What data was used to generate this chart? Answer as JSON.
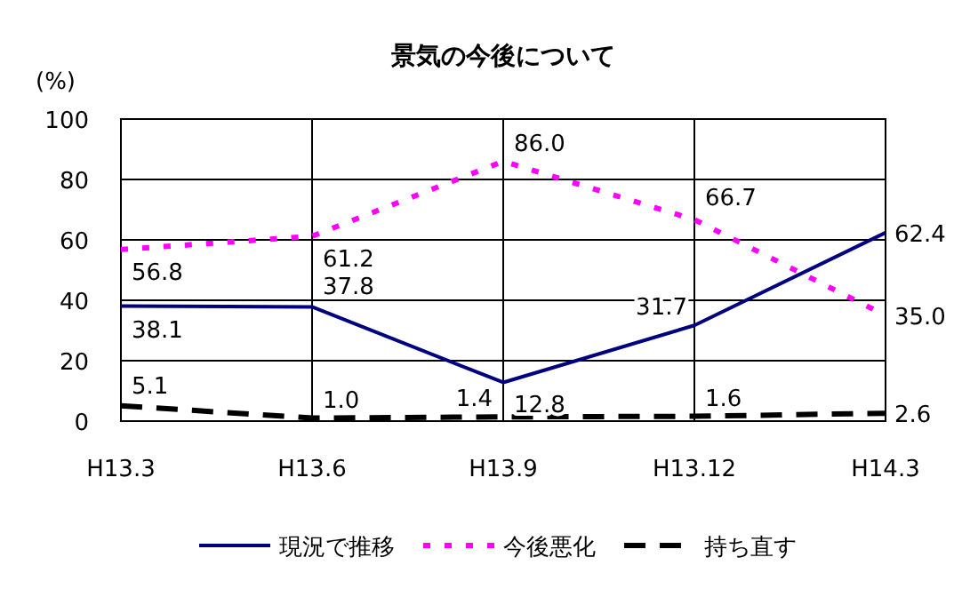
{
  "chart_data": {
    "type": "line",
    "title": "景気の今後について",
    "ylabel": "(%)",
    "categories": [
      "H13.3",
      "H13.6",
      "H13.9",
      "H13.12",
      "H14.3"
    ],
    "series": [
      {
        "name": "現況で推移",
        "color": "#000080",
        "line_style": "solid",
        "values": [
          38.1,
          37.8,
          12.8,
          31.7,
          62.4
        ],
        "value_labels": [
          "38.1",
          "37.8",
          "12.8",
          "31.7",
          "62.4"
        ]
      },
      {
        "name": "今後悪化",
        "color": "#ff00ff",
        "line_style": "dotted",
        "values": [
          56.8,
          61.2,
          86.0,
          66.7,
          35.0
        ],
        "value_labels": [
          "56.8",
          "61.2",
          "86.0",
          "66.7",
          "35.0"
        ]
      },
      {
        "name": "持ち直す",
        "color": "#000000",
        "line_style": "dashed",
        "values": [
          5.1,
          1.0,
          1.4,
          1.6,
          2.6
        ],
        "value_labels": [
          "5.1",
          "1.0",
          "1.4",
          "1.6",
          "2.6"
        ]
      }
    ],
    "ylim": [
      0,
      100
    ],
    "yticks": [
      0,
      20,
      40,
      60,
      80,
      100
    ],
    "grid": true,
    "data_labels": true,
    "legend": "bottom",
    "marker": "none"
  }
}
